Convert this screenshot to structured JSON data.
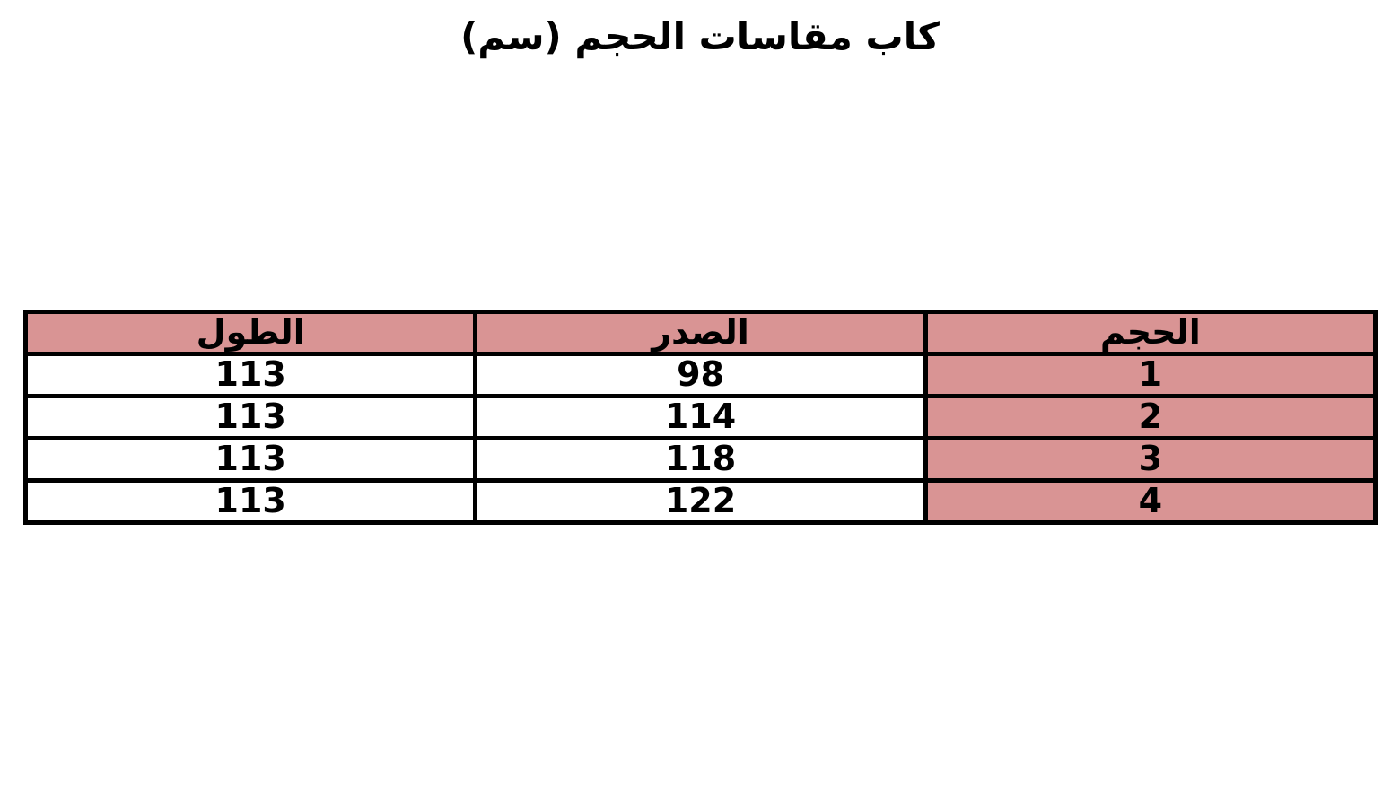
{
  "title": "كاب مقاسات الحجم (سم)",
  "colors": {
    "header_bg": "#D99494",
    "size_column_bg": "#D99494",
    "border": "#000000",
    "text": "#000000",
    "page_bg": "#FFFFFF"
  },
  "table": {
    "direction": "rtl",
    "headers": [
      "الحجم",
      "الصدر",
      "الطول"
    ],
    "rows": [
      {
        "size": "1",
        "chest": "98",
        "length": "113"
      },
      {
        "size": "2",
        "chest": "114",
        "length": "113"
      },
      {
        "size": "3",
        "chest": "118",
        "length": "113"
      },
      {
        "size": "4",
        "chest": "122",
        "length": "113"
      }
    ]
  },
  "chart_data": {
    "type": "table",
    "title": "كاب مقاسات الحجم (سم)",
    "columns": [
      "الحجم",
      "الصدر",
      "الطول"
    ],
    "column_meanings_en": [
      "Size",
      "Chest",
      "Length"
    ],
    "rows": [
      [
        1,
        98,
        113
      ],
      [
        2,
        114,
        113
      ],
      [
        3,
        118,
        113
      ],
      [
        4,
        122,
        113
      ]
    ],
    "units": "cm",
    "layout_hints": {
      "rtl": true,
      "header_background": "#D99494",
      "size_column_background": "#D99494",
      "grid": true
    }
  }
}
